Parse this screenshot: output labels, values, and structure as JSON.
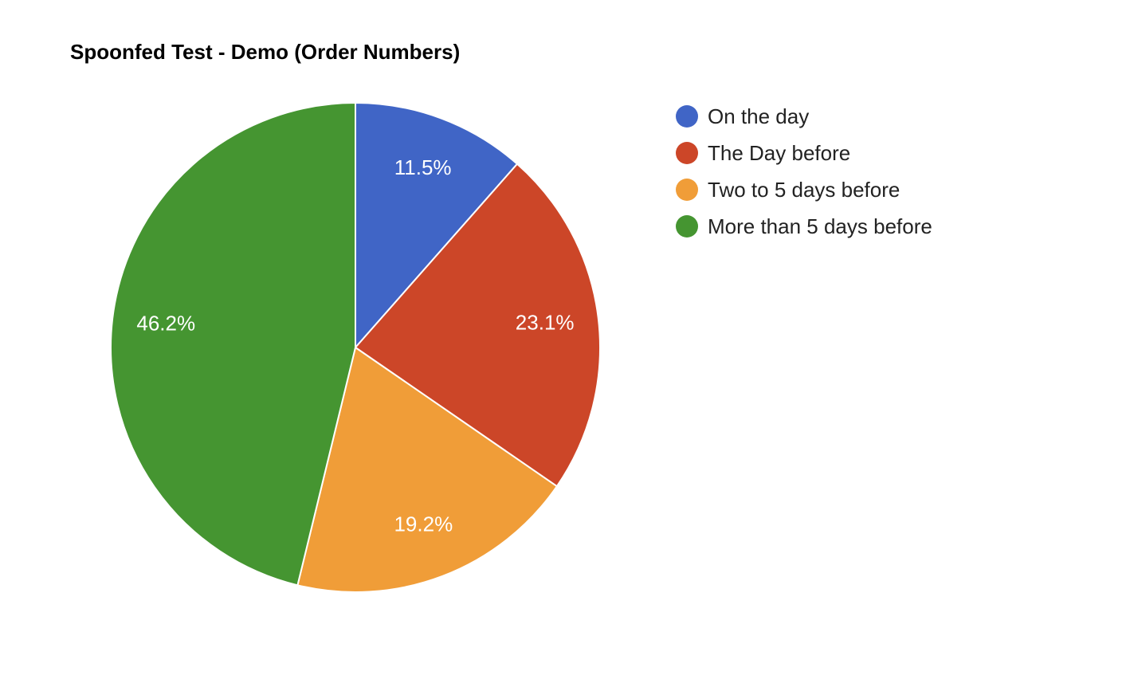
{
  "chart_data": {
    "type": "pie",
    "title": "Spoonfed Test - Demo (Order Numbers)",
    "legend_position": "right",
    "slices": [
      {
        "label": "On the day",
        "value": 11.5,
        "display": "11.5%",
        "color": "#4065c6"
      },
      {
        "label": "The Day before",
        "value": 23.1,
        "display": "23.1%",
        "color": "#cc4628"
      },
      {
        "label": "Two to 5 days before",
        "value": 19.2,
        "display": "19.2%",
        "color": "#f09d38"
      },
      {
        "label": "More than 5 days before",
        "value": 46.2,
        "display": "46.2%",
        "color": "#459531"
      }
    ]
  }
}
